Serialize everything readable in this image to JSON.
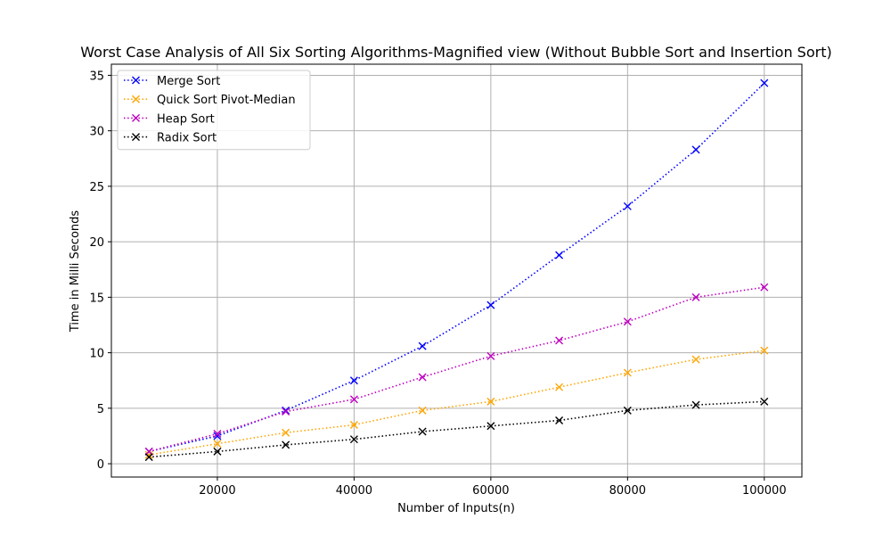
{
  "chart_data": {
    "type": "line",
    "title": "Worst Case Analysis of All Six Sorting Algorithms-Magnified view (Without Bubble Sort and Insertion Sort)",
    "xlabel": "Number of Inputs(n)",
    "ylabel": "Time in Milli Seconds",
    "xlim": [
      4500,
      105500
    ],
    "ylim": [
      -1.2,
      36.0
    ],
    "xticks": [
      20000,
      40000,
      60000,
      80000,
      100000
    ],
    "yticks": [
      0,
      5,
      10,
      15,
      20,
      25,
      30,
      35
    ],
    "grid": true,
    "legend_position": "top-left",
    "x": [
      10000,
      20000,
      30000,
      40000,
      50000,
      60000,
      70000,
      80000,
      90000,
      100000
    ],
    "series": [
      {
        "name": "Merge Sort",
        "color": "#0000ff",
        "values": [
          1.1,
          2.5,
          4.8,
          7.5,
          10.6,
          14.3,
          18.8,
          23.2,
          28.3,
          34.3
        ]
      },
      {
        "name": "Quick Sort Pivot-Median",
        "color": "#ffa500",
        "values": [
          0.8,
          1.8,
          2.8,
          3.5,
          4.8,
          5.6,
          6.9,
          8.2,
          9.4,
          10.2
        ]
      },
      {
        "name": "Heap Sort",
        "color": "#bf00bf",
        "values": [
          1.1,
          2.7,
          4.7,
          5.8,
          7.8,
          9.7,
          11.1,
          12.8,
          15.0,
          15.9
        ]
      },
      {
        "name": "Radix Sort",
        "color": "#000000",
        "values": [
          0.6,
          1.1,
          1.7,
          2.2,
          2.9,
          3.4,
          3.9,
          4.8,
          5.3,
          5.6
        ]
      }
    ]
  }
}
